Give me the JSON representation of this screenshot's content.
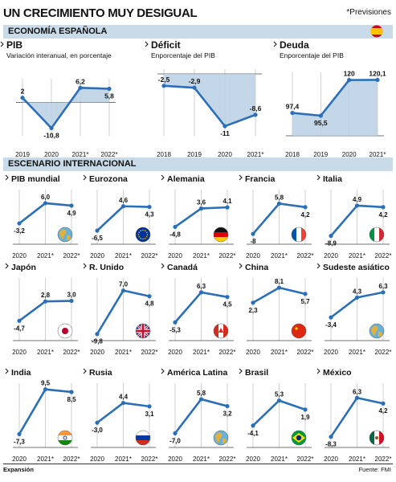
{
  "header": {
    "title": "UN CRECIMIENTO MUY DESIGUAL",
    "note": "*Previsiones"
  },
  "sections": {
    "spain": "ECONOMÍA ESPAÑOLA",
    "international": "ESCENARIO INTERNACIONAL"
  },
  "footer": {
    "left": "Expansión",
    "right": "Fuente: FMI"
  },
  "colors": {
    "line": "#2a6fb8",
    "fill": "#b9d0e4",
    "band": "#c9dbe9"
  },
  "chart_data": [
    {
      "type": "area",
      "title": "PIB",
      "subtitle": "Variación interanual, en porcentaje",
      "categories": [
        "2019",
        "2020",
        "2021*",
        "2022*"
      ],
      "values": [
        2,
        -10.8,
        6.2,
        5.8
      ],
      "labels": [
        "2",
        "-10,8",
        "6,2",
        "5,8"
      ],
      "flag": "spain-flag-icon"
    },
    {
      "type": "area",
      "title": "Déficit",
      "subtitle": "Enporcentaje del PIB",
      "categories": [
        "2018",
        "2019",
        "2020",
        "2021*"
      ],
      "values": [
        -2.5,
        -2.9,
        -11,
        -8.6
      ],
      "labels": [
        "-2,5",
        "-2,9",
        "-11",
        "-8,6"
      ]
    },
    {
      "type": "area",
      "title": "Deuda",
      "subtitle": "Enporcentaje del PIB",
      "categories": [
        "2018",
        "2019",
        "2020",
        "2021*"
      ],
      "values": [
        97.4,
        95.5,
        120,
        120.1
      ],
      "labels": [
        "97,4",
        "95,5",
        "120",
        "120,1"
      ]
    },
    {
      "type": "line",
      "title": "PIB mundial",
      "categories": [
        "2020",
        "2021*",
        "2022*"
      ],
      "values": [
        -3.2,
        6.0,
        4.9
      ],
      "labels": [
        "-3,2",
        "6,0",
        "4,9"
      ],
      "flag": "globe-icon"
    },
    {
      "type": "line",
      "title": "Eurozona",
      "categories": [
        "2020",
        "2021*",
        "2022*"
      ],
      "values": [
        -6.5,
        4.6,
        4.3
      ],
      "labels": [
        "-6,5",
        "4,6",
        "4,3"
      ],
      "flag": "eu-flag-icon"
    },
    {
      "type": "line",
      "title": "Alemania",
      "categories": [
        "2020",
        "2021*",
        "2022*"
      ],
      "values": [
        -4.8,
        3.6,
        4.1
      ],
      "labels": [
        "-4,8",
        "3,6",
        "4,1"
      ],
      "flag": "germany-flag-icon"
    },
    {
      "type": "line",
      "title": "Francia",
      "categories": [
        "2020",
        "2021*",
        "2022*"
      ],
      "values": [
        -8,
        5.8,
        4.2
      ],
      "labels": [
        "-8",
        "5,8",
        "4,2"
      ],
      "flag": "france-flag-icon"
    },
    {
      "type": "line",
      "title": "Italia",
      "categories": [
        "2020",
        "2021*",
        "2022*"
      ],
      "values": [
        -8.9,
        4.9,
        4.2
      ],
      "labels": [
        "-8,9",
        "4,9",
        "4,2"
      ],
      "flag": "italy-flag-icon"
    },
    {
      "type": "line",
      "title": "Japón",
      "categories": [
        "2020",
        "2021*",
        "2022*"
      ],
      "values": [
        -4.7,
        2.8,
        3.0
      ],
      "labels": [
        "-4,7",
        "2,8",
        "3,0"
      ],
      "flag": "japan-flag-icon"
    },
    {
      "type": "line",
      "title": "R. Unido",
      "categories": [
        "2020",
        "2021*",
        "2022*"
      ],
      "values": [
        -9.8,
        7.0,
        4.8
      ],
      "labels": [
        "-9,8",
        "7,0",
        "4,8"
      ],
      "flag": "uk-flag-icon"
    },
    {
      "type": "line",
      "title": "Canadá",
      "categories": [
        "2020",
        "2021*",
        "2022*"
      ],
      "values": [
        -5.3,
        6.3,
        4.5
      ],
      "labels": [
        "-5,3",
        "6,3",
        "4,5"
      ],
      "flag": "canada-flag-icon"
    },
    {
      "type": "line",
      "title": "China",
      "categories": [
        "2020",
        "2021*",
        "2022*"
      ],
      "values": [
        2.3,
        8.1,
        5.7
      ],
      "labels": [
        "2,3",
        "8,1",
        "5,7"
      ],
      "flag": "china-flag-icon"
    },
    {
      "type": "line",
      "title": "Sudeste asiático",
      "categories": [
        "2020",
        "2021*",
        "2022*"
      ],
      "values": [
        -3.4,
        4.3,
        6.3
      ],
      "labels": [
        "-3,4",
        "4,3",
        "6,3"
      ],
      "flag": "asia-globe-icon"
    },
    {
      "type": "line",
      "title": "India",
      "categories": [
        "2020",
        "2021*",
        "2022*"
      ],
      "values": [
        -7.3,
        9.5,
        8.5
      ],
      "labels": [
        "-7,3",
        "9,5",
        "8,5"
      ],
      "flag": "india-flag-icon"
    },
    {
      "type": "line",
      "title": "Rusia",
      "categories": [
        "2020",
        "2021*",
        "2022*"
      ],
      "values": [
        -3.0,
        4.4,
        3.1
      ],
      "labels": [
        "-3,0",
        "4,4",
        "3,1"
      ],
      "flag": "russia-flag-icon"
    },
    {
      "type": "line",
      "title": "América Latina",
      "categories": [
        "2020",
        "2021*",
        "2022*"
      ],
      "values": [
        -7.0,
        5.8,
        3.2
      ],
      "labels": [
        "-7,0",
        "5,8",
        "3,2"
      ],
      "flag": "americas-globe-icon"
    },
    {
      "type": "line",
      "title": "Brasil",
      "categories": [
        "2020",
        "2021*",
        "2022*"
      ],
      "values": [
        -4.1,
        5.3,
        1.9
      ],
      "labels": [
        "-4,1",
        "5,3",
        "1,9"
      ],
      "flag": "brazil-flag-icon"
    },
    {
      "type": "line",
      "title": "México",
      "categories": [
        "2020",
        "2021*",
        "2022*"
      ],
      "values": [
        -8.3,
        6.3,
        4.2
      ],
      "labels": [
        "-8,3",
        "6,3",
        "4,2"
      ],
      "flag": "mexico-flag-icon"
    }
  ]
}
